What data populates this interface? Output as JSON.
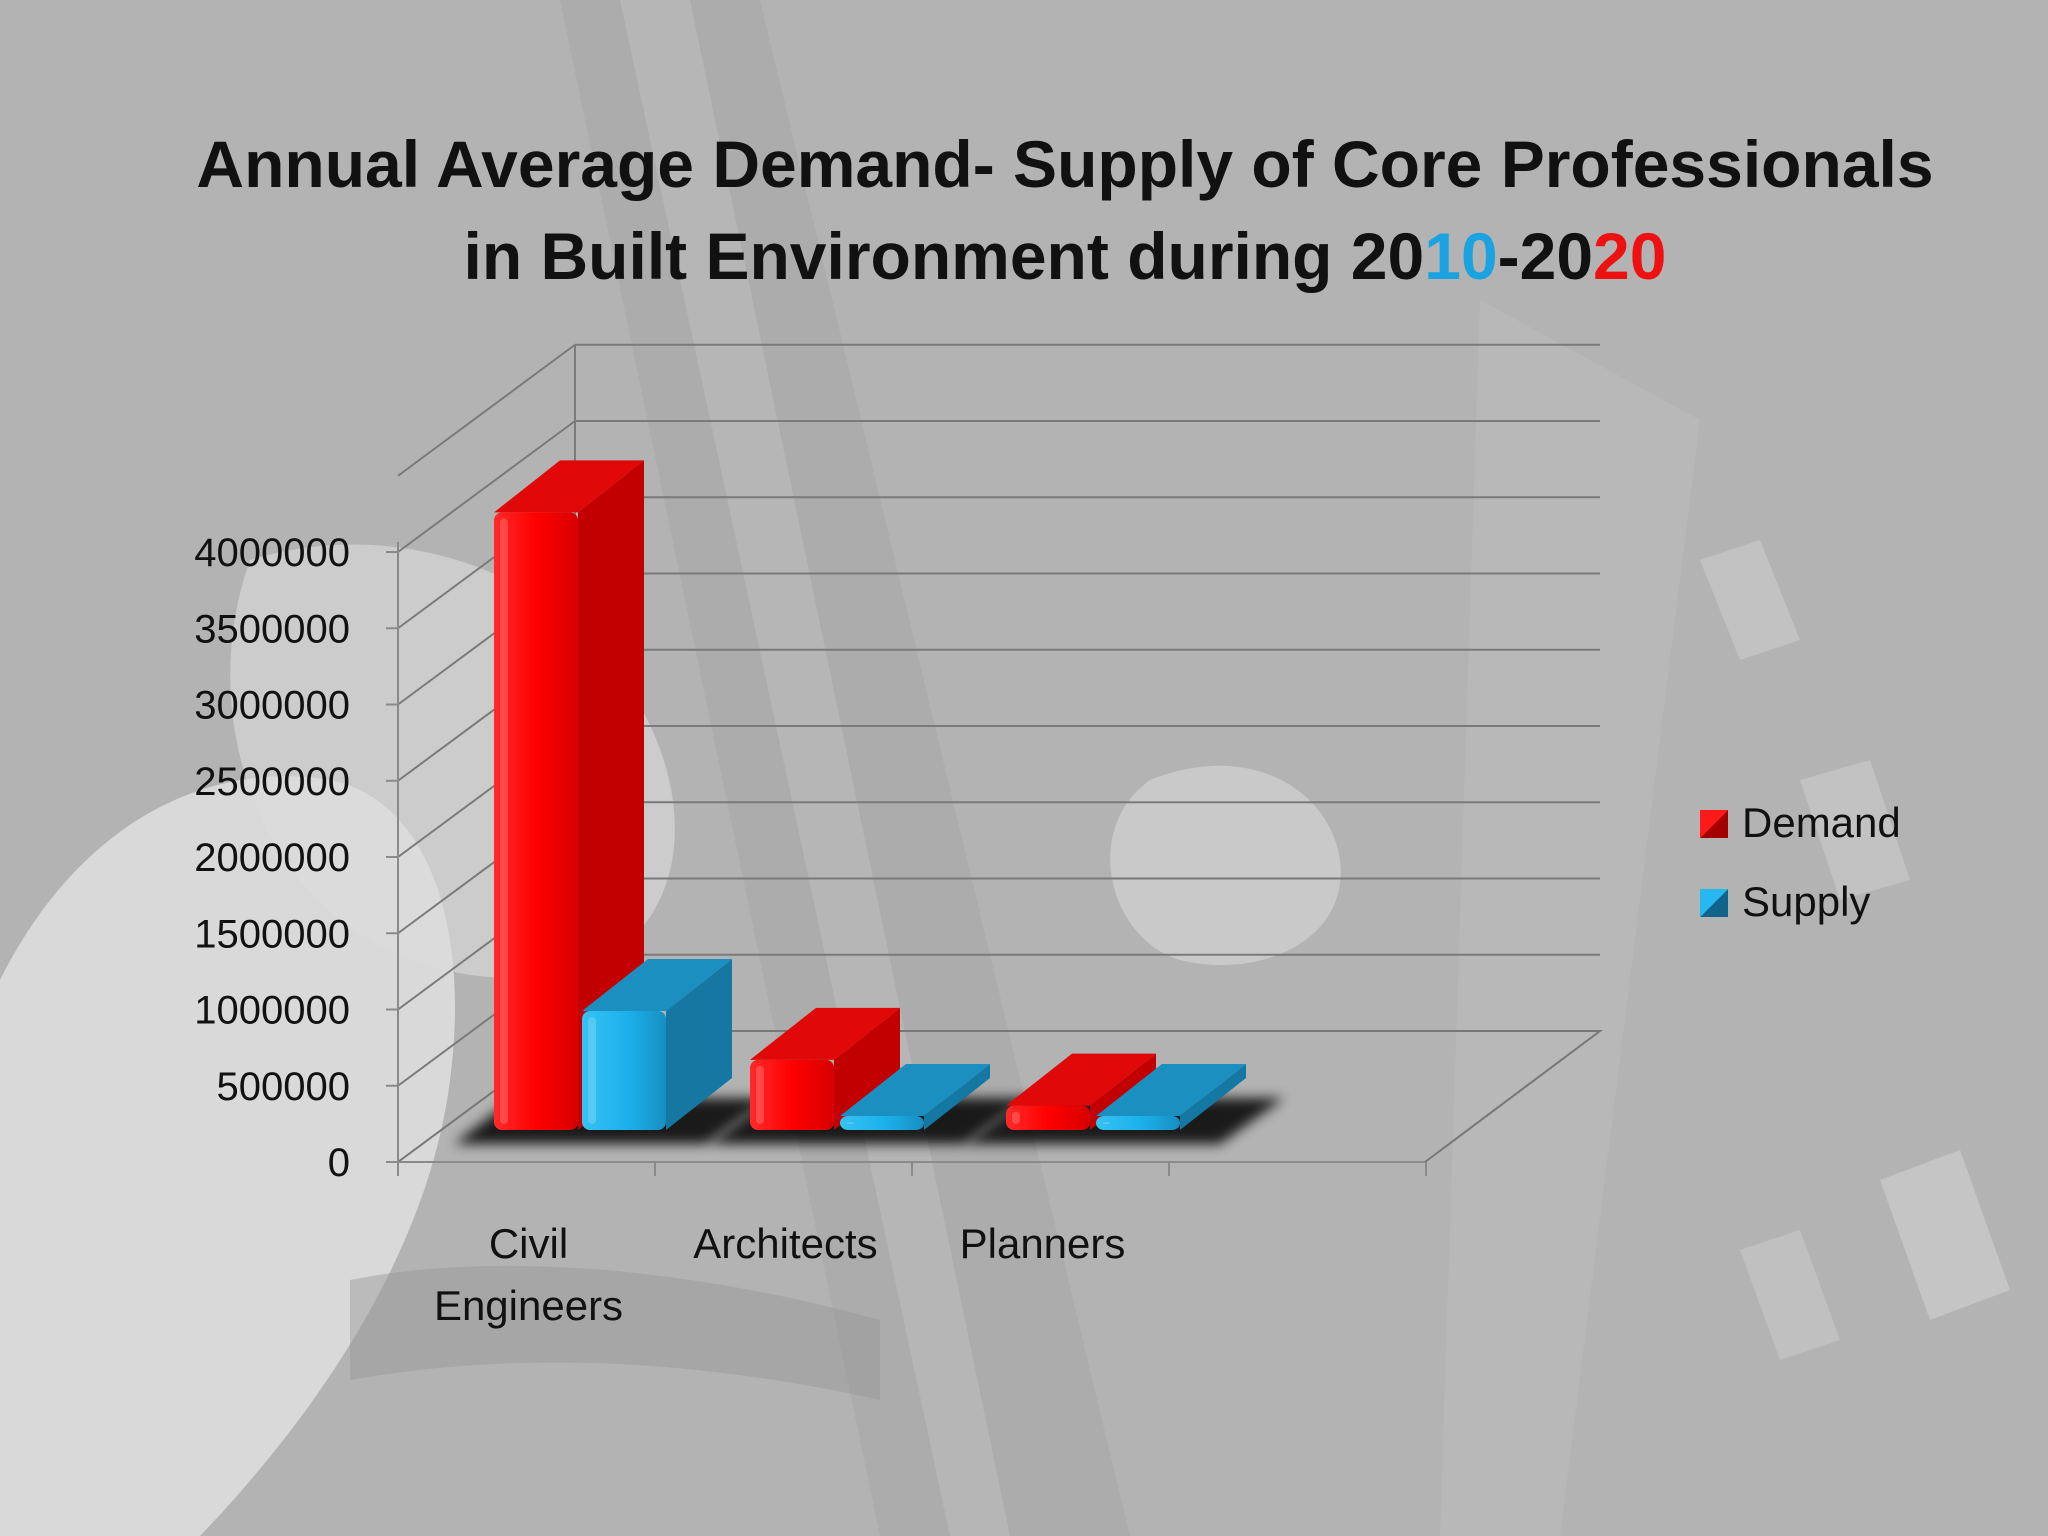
{
  "slide": {
    "title_line1": "Annual Average Demand- Supply of Core Professionals",
    "title_line2_prefix": "in Built Environment during 20",
    "title_year1_suffix": "10",
    "title_dash_20": "-20",
    "title_year2_suffix": "20"
  },
  "colors": {
    "demand": "#ff0a0a",
    "supply": "#1cb0ea",
    "title_blue": "#1aa3e0",
    "title_red": "#ee1111"
  },
  "chart_data": {
    "type": "bar",
    "style": "3d-clustered-column",
    "title": "Annual Average Demand- Supply of Core Professionals in Built Environment during 2010-2020",
    "categories": [
      "Civil Engineers",
      "Architects",
      "Planners"
    ],
    "category_label_lines": [
      [
        "Civil",
        "Engineers"
      ],
      [
        "Architects"
      ],
      [
        "Planners"
      ]
    ],
    "series": [
      {
        "name": "Demand",
        "values": [
          4050000,
          460000,
          160000
        ],
        "color": "#ff0a0a"
      },
      {
        "name": "Supply",
        "values": [
          780000,
          35000,
          25000
        ],
        "color": "#1cb0ea"
      }
    ],
    "ylim": [
      0,
      4000000
    ],
    "yticks": [
      0,
      500000,
      1000000,
      1500000,
      2000000,
      2500000,
      3000000,
      3500000,
      4000000
    ],
    "ytick_labels": [
      "0",
      "500000",
      "1000000",
      "1500000",
      "2000000",
      "2500000",
      "3000000",
      "3500000",
      "4000000"
    ],
    "grid": true,
    "legend": "right",
    "xlabel": "",
    "ylabel": ""
  }
}
